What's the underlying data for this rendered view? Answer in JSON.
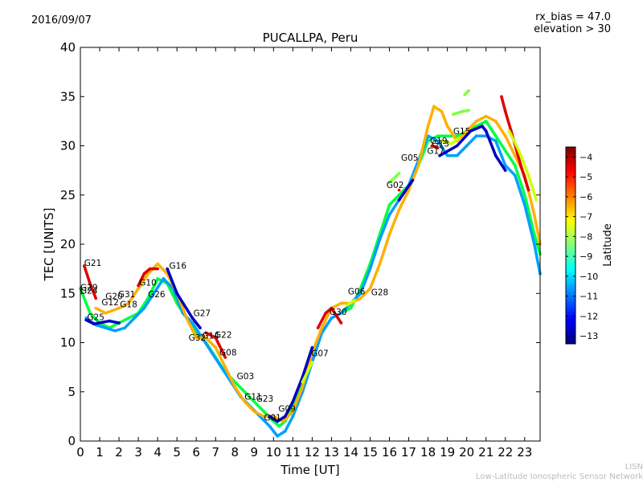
{
  "header": {
    "date": "2016/09/07",
    "rx_bias": "rx_bias = 47.0",
    "elevation": "elevation > 30",
    "title": "PUCALLPA, Peru"
  },
  "footer": {
    "line1": "LISN",
    "line2": "Low-Latitude Ionospheric Sensor Network"
  },
  "colorbar": {
    "label": "Latitude",
    "ticks": [
      -4,
      -5,
      -6,
      -7,
      -8,
      -9,
      -10,
      -11,
      -12,
      -13
    ],
    "range": [
      -13.4,
      -3.5
    ],
    "colormap": [
      "#00007f",
      "#0000ff",
      "#007fff",
      "#00ffff",
      "#7fff7f",
      "#ffff00",
      "#ff7f00",
      "#ff0000",
      "#7f0000"
    ]
  },
  "chart_data": {
    "type": "scatter",
    "title": "PUCALLPA, Peru",
    "xlabel": "Time [UT]",
    "ylabel": "TEC [UNITS]",
    "xlim": [
      0,
      23.8
    ],
    "ylim": [
      0,
      40
    ],
    "xticks": [
      0,
      1,
      2,
      3,
      4,
      5,
      6,
      7,
      8,
      9,
      10,
      11,
      12,
      13,
      14,
      15,
      16,
      17,
      18,
      19,
      20,
      21,
      22,
      23
    ],
    "yticks": [
      0,
      5,
      10,
      15,
      20,
      25,
      30,
      35,
      40
    ],
    "grid": false,
    "series": [
      {
        "color": "#00ff40",
        "points": [
          [
            0,
            15.5
          ],
          [
            0.5,
            13
          ],
          [
            1,
            12
          ],
          [
            1.5,
            11.5
          ],
          [
            2,
            12
          ],
          [
            2.5,
            12.5
          ],
          [
            3,
            13
          ],
          [
            3.5,
            14.5
          ],
          [
            4,
            16.5
          ],
          [
            4.5,
            16
          ],
          [
            5,
            14
          ],
          [
            5.5,
            12.5
          ],
          [
            6,
            11
          ],
          [
            6.5,
            10
          ],
          [
            7,
            8.5
          ],
          [
            7.5,
            7
          ],
          [
            8,
            6
          ],
          [
            8.5,
            5
          ],
          [
            9,
            4
          ],
          [
            9.5,
            3
          ],
          [
            10,
            2
          ],
          [
            10.3,
            1.5
          ],
          [
            10.6,
            2
          ],
          [
            11,
            3.5
          ],
          [
            11.5,
            6
          ],
          [
            12,
            8.5
          ],
          [
            12.5,
            11
          ],
          [
            13,
            12.5
          ],
          [
            13.5,
            13
          ],
          [
            14,
            13.5
          ],
          [
            14.5,
            15.5
          ],
          [
            15,
            18
          ],
          [
            15.5,
            21
          ],
          [
            16,
            24
          ],
          [
            16.5,
            25
          ],
          [
            17,
            26
          ],
          [
            17.5,
            28
          ],
          [
            18,
            30.5
          ],
          [
            18.5,
            31
          ],
          [
            19,
            31
          ],
          [
            19.5,
            31
          ],
          [
            20,
            31.5
          ],
          [
            20.5,
            32
          ],
          [
            21,
            32.5
          ],
          [
            21.5,
            31
          ],
          [
            22,
            29.5
          ],
          [
            22.5,
            28
          ],
          [
            23,
            25
          ],
          [
            23.5,
            21
          ],
          [
            23.8,
            19
          ]
        ]
      },
      {
        "color": "#00a0ff",
        "points": [
          [
            0.3,
            12.5
          ],
          [
            0.8,
            11.8
          ],
          [
            1.3,
            11.5
          ],
          [
            1.8,
            11.2
          ],
          [
            2.3,
            11.5
          ],
          [
            2.8,
            12.5
          ],
          [
            3.3,
            13.5
          ],
          [
            3.8,
            15
          ],
          [
            4.3,
            16.5
          ],
          [
            4.8,
            15.5
          ],
          [
            5.3,
            13
          ],
          [
            5.8,
            12
          ],
          [
            6.3,
            10.5
          ],
          [
            6.8,
            9
          ],
          [
            7.3,
            7.5
          ],
          [
            7.8,
            6
          ],
          [
            8.3,
            4.5
          ],
          [
            8.8,
            3.5
          ],
          [
            9.3,
            2.5
          ],
          [
            9.8,
            1.5
          ],
          [
            10.2,
            0.5
          ],
          [
            10.6,
            1
          ],
          [
            11,
            2.5
          ],
          [
            11.5,
            5
          ],
          [
            12,
            8
          ],
          [
            12.5,
            11
          ],
          [
            13,
            12.5
          ],
          [
            13.5,
            13
          ],
          [
            14,
            14
          ],
          [
            14.5,
            15
          ],
          [
            15,
            17.5
          ],
          [
            15.5,
            20.5
          ],
          [
            16,
            23
          ],
          [
            16.5,
            24.5
          ],
          [
            17,
            26
          ],
          [
            17.5,
            28.5
          ],
          [
            18,
            31
          ],
          [
            18.5,
            30.5
          ],
          [
            19,
            29
          ],
          [
            19.5,
            29
          ],
          [
            20,
            30
          ],
          [
            20.5,
            31
          ],
          [
            21,
            31
          ],
          [
            21.5,
            30.5
          ],
          [
            22,
            28
          ],
          [
            22.5,
            27
          ],
          [
            23,
            24
          ],
          [
            23.5,
            20
          ],
          [
            23.8,
            17
          ]
        ]
      },
      {
        "color": "#ffb000",
        "points": [
          [
            0.8,
            13.5
          ],
          [
            1.3,
            13
          ],
          [
            2,
            13.5
          ],
          [
            2.5,
            14
          ],
          [
            3,
            15.5
          ],
          [
            3.5,
            17
          ],
          [
            4,
            18
          ],
          [
            4.5,
            17
          ],
          [
            5,
            15
          ],
          [
            5.5,
            12.5
          ],
          [
            6,
            10.5
          ],
          [
            6.5,
            10.5
          ],
          [
            7,
            9.5
          ],
          [
            7.5,
            7.5
          ],
          [
            8,
            5.5
          ],
          [
            8.5,
            4
          ],
          [
            9,
            3
          ],
          [
            9.5,
            2.5
          ],
          [
            10,
            2.5
          ],
          [
            10.5,
            2
          ],
          [
            11,
            3
          ],
          [
            11.5,
            5.5
          ],
          [
            12,
            9
          ],
          [
            12.5,
            11.5
          ],
          [
            13,
            13.5
          ],
          [
            13.5,
            14
          ],
          [
            14,
            14
          ],
          [
            14.5,
            14.5
          ],
          [
            15,
            15.5
          ],
          [
            15.5,
            18
          ],
          [
            16,
            21
          ],
          [
            16.5,
            23.5
          ],
          [
            17,
            25.5
          ],
          [
            17.5,
            28
          ],
          [
            18,
            32
          ],
          [
            18.3,
            34
          ],
          [
            18.7,
            33.5
          ],
          [
            19,
            32
          ],
          [
            19.5,
            30.5
          ],
          [
            20,
            31.5
          ],
          [
            20.5,
            32.5
          ],
          [
            21,
            33
          ],
          [
            21.5,
            32.5
          ],
          [
            22,
            31
          ],
          [
            22.5,
            29
          ],
          [
            23,
            27
          ],
          [
            23.5,
            23
          ],
          [
            23.8,
            20
          ]
        ]
      },
      {
        "color": "#e00000",
        "points": [
          [
            0.2,
            17.8
          ],
          [
            0.5,
            16
          ],
          [
            0.8,
            14.5
          ],
          [
            3,
            15.8
          ],
          [
            3.3,
            17
          ],
          [
            3.6,
            17.5
          ],
          [
            4,
            17.5
          ],
          [
            6.5,
            11
          ],
          [
            7,
            10.5
          ],
          [
            7.5,
            8.5
          ],
          [
            12.3,
            11.5
          ],
          [
            12.7,
            13
          ],
          [
            13,
            13.5
          ],
          [
            13.5,
            12
          ],
          [
            16.5,
            25.5
          ],
          [
            18.2,
            30
          ],
          [
            18.5,
            29.8
          ],
          [
            21.8,
            35
          ],
          [
            22,
            33.5
          ],
          [
            22.3,
            31.5
          ],
          [
            22.8,
            28
          ],
          [
            23.2,
            25.5
          ]
        ]
      },
      {
        "color": "#0000c0",
        "points": [
          [
            0.3,
            12.3
          ],
          [
            0.7,
            11.9
          ],
          [
            1.5,
            12.2
          ],
          [
            2,
            12
          ],
          [
            4.5,
            17.5
          ],
          [
            4.8,
            16
          ],
          [
            5,
            15
          ],
          [
            5.8,
            12.5
          ],
          [
            6.2,
            11.5
          ],
          [
            9.8,
            2.5
          ],
          [
            10.2,
            2
          ],
          [
            10.6,
            2.5
          ],
          [
            11,
            4
          ],
          [
            11.5,
            6.5
          ],
          [
            12,
            9.5
          ],
          [
            16.5,
            24.5
          ],
          [
            17.2,
            26.5
          ],
          [
            18.6,
            29
          ],
          [
            19.5,
            30
          ],
          [
            20.2,
            31.5
          ],
          [
            20.8,
            32
          ],
          [
            21,
            31.5
          ],
          [
            21.5,
            29
          ],
          [
            22,
            27.5
          ]
        ]
      },
      {
        "color": "#80ff40",
        "points": [
          [
            19.3,
            33.2
          ],
          [
            19.8,
            33.5
          ],
          [
            20.1,
            33.6
          ],
          [
            16.0,
            26.3
          ],
          [
            16.3,
            26.8
          ],
          [
            16.5,
            27.2
          ],
          [
            19.9,
            35.2
          ],
          [
            20.1,
            35.6
          ]
        ]
      },
      {
        "color": "#d0ff00",
        "points": [
          [
            11.5,
            6
          ],
          [
            12,
            8
          ],
          [
            13.8,
            13.8
          ],
          [
            14.2,
            14.3
          ],
          [
            18.7,
            30.5
          ],
          [
            19.2,
            30.2
          ],
          [
            19.6,
            30.8
          ],
          [
            22.2,
            31.5
          ],
          [
            22.7,
            29.5
          ],
          [
            23.2,
            27
          ],
          [
            23.6,
            24.5
          ]
        ]
      }
    ],
    "annotations": [
      {
        "text": "G21",
        "x": 0.2,
        "y": 17.8
      },
      {
        "text": "G29",
        "x": 0.0,
        "y": 15.3
      },
      {
        "text": "G24",
        "x": 0.0,
        "y": 15.0
      },
      {
        "text": "G20",
        "x": 1.3,
        "y": 14.4
      },
      {
        "text": "G31",
        "x": 1.95,
        "y": 14.6
      },
      {
        "text": "G12",
        "x": 1.1,
        "y": 13.8
      },
      {
        "text": "G10",
        "x": 3.05,
        "y": 15.8
      },
      {
        "text": "G18",
        "x": 2.05,
        "y": 13.6
      },
      {
        "text": "G26",
        "x": 3.5,
        "y": 14.6
      },
      {
        "text": "G16",
        "x": 4.6,
        "y": 17.5
      },
      {
        "text": "G25",
        "x": 0.35,
        "y": 12.3
      },
      {
        "text": "G27",
        "x": 5.85,
        "y": 12.7
      },
      {
        "text": "G32",
        "x": 5.6,
        "y": 10.2
      },
      {
        "text": "G14",
        "x": 6.3,
        "y": 10.4
      },
      {
        "text": "G22",
        "x": 6.95,
        "y": 10.5
      },
      {
        "text": "G08",
        "x": 7.2,
        "y": 8.7
      },
      {
        "text": "G03",
        "x": 8.1,
        "y": 6.3
      },
      {
        "text": "G11",
        "x": 8.5,
        "y": 4.2
      },
      {
        "text": "G23",
        "x": 9.1,
        "y": 4.0
      },
      {
        "text": "G09",
        "x": 10.25,
        "y": 3.0
      },
      {
        "text": "G01",
        "x": 9.5,
        "y": 2.1
      },
      {
        "text": "G07",
        "x": 11.95,
        "y": 8.6
      },
      {
        "text": "G30",
        "x": 12.9,
        "y": 12.8
      },
      {
        "text": "G06",
        "x": 13.85,
        "y": 14.9
      },
      {
        "text": "G28",
        "x": 15.05,
        "y": 14.8
      },
      {
        "text": "G02",
        "x": 15.85,
        "y": 25.7
      },
      {
        "text": "G05",
        "x": 16.6,
        "y": 28.5
      },
      {
        "text": "G17",
        "x": 17.95,
        "y": 29.2
      },
      {
        "text": "G19",
        "x": 18.1,
        "y": 30.2
      },
      {
        "text": "G13",
        "x": 18.2,
        "y": 29.9
      },
      {
        "text": "G15",
        "x": 19.3,
        "y": 31.2
      }
    ]
  }
}
